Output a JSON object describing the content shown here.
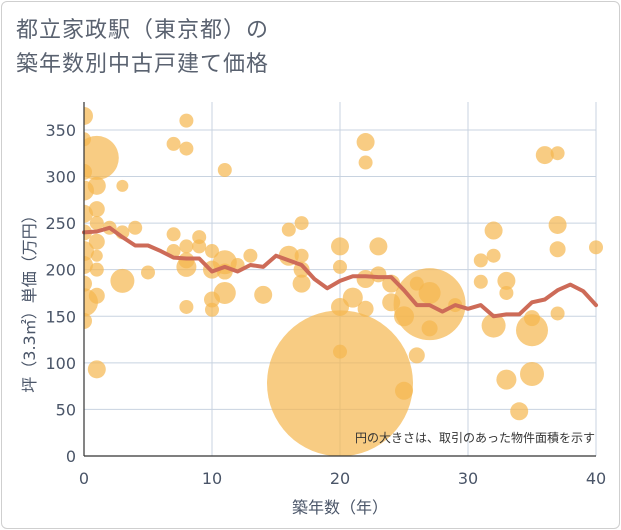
{
  "title": {
    "line1": "都立家政駅（東京都）の",
    "line2": "築年数別中古戸建て価格"
  },
  "colors": {
    "bubble": "#f5b74e",
    "line": "#cd6b58",
    "grid": "#c8d3e0",
    "text": "#4a5568"
  },
  "chart_data": {
    "type": "scatter",
    "xlabel": "築年数（年）",
    "ylabel": "坪（3.3㎡）単価（万円）",
    "xlim": [
      0,
      40
    ],
    "ylim": [
      0,
      380
    ],
    "xticks": [
      "0",
      "10",
      "20",
      "30",
      "40"
    ],
    "yticks": [
      "0",
      "50",
      "100",
      "150",
      "200",
      "250",
      "300",
      "350"
    ],
    "grid": true,
    "annotation": "円の大きさは、取引のあった物件面積を示す",
    "bubbles": [
      {
        "x": 0,
        "y": 365,
        "r": 9
      },
      {
        "x": 0,
        "y": 340,
        "r": 7
      },
      {
        "x": 0,
        "y": 305,
        "r": 8
      },
      {
        "x": 0,
        "y": 285,
        "r": 10
      },
      {
        "x": 0,
        "y": 260,
        "r": 9
      },
      {
        "x": 0,
        "y": 240,
        "r": 8
      },
      {
        "x": 0,
        "y": 220,
        "r": 10
      },
      {
        "x": 0,
        "y": 205,
        "r": 9
      },
      {
        "x": 0,
        "y": 185,
        "r": 8
      },
      {
        "x": 0,
        "y": 165,
        "r": 14
      },
      {
        "x": 0,
        "y": 145,
        "r": 8
      },
      {
        "x": 1,
        "y": 320,
        "r": 22
      },
      {
        "x": 1,
        "y": 290,
        "r": 9
      },
      {
        "x": 1,
        "y": 265,
        "r": 8
      },
      {
        "x": 1,
        "y": 250,
        "r": 7
      },
      {
        "x": 1,
        "y": 230,
        "r": 8
      },
      {
        "x": 1,
        "y": 215,
        "r": 6
      },
      {
        "x": 1,
        "y": 200,
        "r": 7
      },
      {
        "x": 1,
        "y": 172,
        "r": 8
      },
      {
        "x": 1,
        "y": 93,
        "r": 9
      },
      {
        "x": 2,
        "y": 245,
        "r": 7
      },
      {
        "x": 3,
        "y": 290,
        "r": 6
      },
      {
        "x": 3,
        "y": 240,
        "r": 7
      },
      {
        "x": 3,
        "y": 188,
        "r": 12
      },
      {
        "x": 4,
        "y": 245,
        "r": 7
      },
      {
        "x": 5,
        "y": 197,
        "r": 7
      },
      {
        "x": 7,
        "y": 335,
        "r": 7
      },
      {
        "x": 7,
        "y": 238,
        "r": 7
      },
      {
        "x": 7,
        "y": 220,
        "r": 7
      },
      {
        "x": 8,
        "y": 360,
        "r": 7
      },
      {
        "x": 8,
        "y": 330,
        "r": 7
      },
      {
        "x": 8,
        "y": 225,
        "r": 7
      },
      {
        "x": 8,
        "y": 210,
        "r": 8
      },
      {
        "x": 8,
        "y": 203,
        "r": 10
      },
      {
        "x": 8,
        "y": 160,
        "r": 7
      },
      {
        "x": 9,
        "y": 235,
        "r": 7
      },
      {
        "x": 9,
        "y": 225,
        "r": 7
      },
      {
        "x": 10,
        "y": 220,
        "r": 7
      },
      {
        "x": 10,
        "y": 200,
        "r": 9
      },
      {
        "x": 10,
        "y": 168,
        "r": 8
      },
      {
        "x": 10,
        "y": 157,
        "r": 7
      },
      {
        "x": 11,
        "y": 307,
        "r": 7
      },
      {
        "x": 11,
        "y": 208,
        "r": 12
      },
      {
        "x": 11,
        "y": 198,
        "r": 8
      },
      {
        "x": 11,
        "y": 175,
        "r": 11
      },
      {
        "x": 12,
        "y": 205,
        "r": 7
      },
      {
        "x": 13,
        "y": 215,
        "r": 7
      },
      {
        "x": 14,
        "y": 173,
        "r": 9
      },
      {
        "x": 16,
        "y": 243,
        "r": 7
      },
      {
        "x": 16,
        "y": 215,
        "r": 10
      },
      {
        "x": 17,
        "y": 250,
        "r": 7
      },
      {
        "x": 17,
        "y": 215,
        "r": 7
      },
      {
        "x": 17,
        "y": 200,
        "r": 8
      },
      {
        "x": 17,
        "y": 185,
        "r": 9
      },
      {
        "x": 20,
        "y": 225,
        "r": 9
      },
      {
        "x": 20,
        "y": 203,
        "r": 7
      },
      {
        "x": 20,
        "y": 160,
        "r": 9
      },
      {
        "x": 20,
        "y": 112,
        "r": 7
      },
      {
        "x": 20,
        "y": 78,
        "r": 73
      },
      {
        "x": 21,
        "y": 170,
        "r": 10
      },
      {
        "x": 22,
        "y": 337,
        "r": 9
      },
      {
        "x": 22,
        "y": 315,
        "r": 7
      },
      {
        "x": 22,
        "y": 190,
        "r": 9
      },
      {
        "x": 22,
        "y": 158,
        "r": 8
      },
      {
        "x": 23,
        "y": 225,
        "r": 9
      },
      {
        "x": 23,
        "y": 195,
        "r": 8
      },
      {
        "x": 24,
        "y": 185,
        "r": 9
      },
      {
        "x": 24,
        "y": 165,
        "r": 9
      },
      {
        "x": 25,
        "y": 150,
        "r": 10
      },
      {
        "x": 25,
        "y": 70,
        "r": 9
      },
      {
        "x": 26,
        "y": 108,
        "r": 8
      },
      {
        "x": 26,
        "y": 185,
        "r": 7
      },
      {
        "x": 27,
        "y": 163,
        "r": 36
      },
      {
        "x": 27,
        "y": 175,
        "r": 11
      },
      {
        "x": 27,
        "y": 137,
        "r": 8
      },
      {
        "x": 29,
        "y": 162,
        "r": 7
      },
      {
        "x": 31,
        "y": 210,
        "r": 7
      },
      {
        "x": 31,
        "y": 187,
        "r": 7
      },
      {
        "x": 32,
        "y": 242,
        "r": 9
      },
      {
        "x": 32,
        "y": 215,
        "r": 7
      },
      {
        "x": 32,
        "y": 140,
        "r": 12
      },
      {
        "x": 33,
        "y": 188,
        "r": 9
      },
      {
        "x": 33,
        "y": 175,
        "r": 7
      },
      {
        "x": 33,
        "y": 82,
        "r": 10
      },
      {
        "x": 34,
        "y": 48,
        "r": 9
      },
      {
        "x": 35,
        "y": 148,
        "r": 8
      },
      {
        "x": 35,
        "y": 135,
        "r": 16
      },
      {
        "x": 35,
        "y": 88,
        "r": 12
      },
      {
        "x": 36,
        "y": 323,
        "r": 9
      },
      {
        "x": 37,
        "y": 325,
        "r": 7
      },
      {
        "x": 37,
        "y": 248,
        "r": 9
      },
      {
        "x": 37,
        "y": 222,
        "r": 8
      },
      {
        "x": 37,
        "y": 153,
        "r": 7
      },
      {
        "x": 40,
        "y": 224,
        "r": 7
      }
    ],
    "line": {
      "x": [
        0,
        1,
        2,
        3,
        4,
        5,
        6,
        7,
        8,
        9,
        10,
        11,
        12,
        13,
        14,
        15,
        16,
        17,
        18,
        19,
        20,
        21,
        22,
        23,
        24,
        25,
        26,
        27,
        28,
        29,
        30,
        31,
        32,
        33,
        34,
        35,
        36,
        37,
        38,
        39,
        40
      ],
      "y": [
        240,
        241,
        245,
        235,
        226,
        226,
        220,
        213,
        212,
        212,
        198,
        203,
        198,
        205,
        203,
        215,
        210,
        205,
        190,
        180,
        188,
        193,
        193,
        192,
        192,
        178,
        162,
        162,
        155,
        162,
        158,
        162,
        150,
        152,
        152,
        165,
        168,
        178,
        184,
        177,
        162
      ]
    }
  }
}
